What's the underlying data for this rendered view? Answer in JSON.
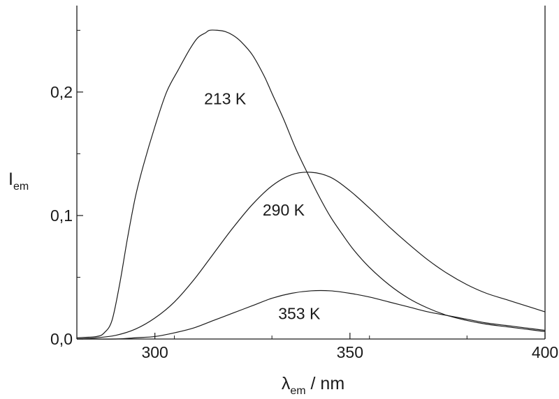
{
  "chart_data": {
    "type": "line",
    "xlabel": {
      "symbol": "λ",
      "sub": "em",
      "unit": " / nm"
    },
    "ylabel": {
      "symbol": "I",
      "sub": "em"
    },
    "xlim": [
      280,
      400
    ],
    "ylim": [
      0,
      0.27
    ],
    "x_ticks": [
      {
        "value": 300,
        "label": "300"
      },
      {
        "value": 350,
        "label": "350"
      },
      {
        "value": 400,
        "label": "400"
      }
    ],
    "y_ticks": [
      {
        "value": 0.0,
        "label": "0,0"
      },
      {
        "value": 0.1,
        "label": "0,1"
      },
      {
        "value": 0.2,
        "label": "0,2"
      }
    ],
    "grid": false,
    "colors": {
      "line": "#1a1a1a",
      "axis": "#1a1a1a",
      "background": "#ffffff"
    },
    "series": [
      {
        "name": "213 K",
        "x": [
          280,
          285,
          287,
          289,
          291,
          293,
          295,
          297,
          300,
          303,
          306,
          309,
          311,
          313,
          314,
          316,
          318,
          320,
          322,
          325,
          328,
          330,
          333,
          336,
          339,
          342,
          345,
          348,
          351,
          355,
          360,
          365,
          370,
          375,
          380,
          385,
          390,
          395,
          400
        ],
        "values": [
          0.001,
          0.002,
          0.005,
          0.015,
          0.045,
          0.082,
          0.115,
          0.14,
          0.172,
          0.2,
          0.218,
          0.235,
          0.244,
          0.248,
          0.25,
          0.25,
          0.249,
          0.246,
          0.241,
          0.23,
          0.213,
          0.199,
          0.178,
          0.155,
          0.135,
          0.116,
          0.099,
          0.085,
          0.072,
          0.058,
          0.044,
          0.033,
          0.025,
          0.019,
          0.015,
          0.012,
          0.01,
          0.008,
          0.006
        ]
      },
      {
        "name": "290 K",
        "x": [
          280,
          285,
          290,
          295,
          300,
          305,
          310,
          315,
          320,
          325,
          330,
          335,
          340,
          345,
          350,
          355,
          360,
          365,
          370,
          375,
          380,
          385,
          390,
          395,
          400
        ],
        "values": [
          0.0,
          0.001,
          0.003,
          0.008,
          0.017,
          0.03,
          0.048,
          0.069,
          0.09,
          0.109,
          0.124,
          0.133,
          0.135,
          0.131,
          0.12,
          0.106,
          0.091,
          0.077,
          0.064,
          0.053,
          0.044,
          0.037,
          0.032,
          0.027,
          0.022
        ]
      },
      {
        "name": "353 K",
        "x": [
          280,
          290,
          295,
          300,
          305,
          310,
          315,
          320,
          325,
          330,
          335,
          340,
          345,
          350,
          355,
          360,
          365,
          370,
          375,
          380,
          385,
          390,
          395,
          400
        ],
        "values": [
          0.0,
          0.0,
          0.001,
          0.002,
          0.005,
          0.009,
          0.015,
          0.021,
          0.027,
          0.033,
          0.037,
          0.039,
          0.039,
          0.037,
          0.034,
          0.03,
          0.026,
          0.022,
          0.019,
          0.016,
          0.013,
          0.011,
          0.009,
          0.007
        ]
      }
    ],
    "annotations": [
      {
        "text": "213 K",
        "x": 318,
        "y": 0.19
      },
      {
        "text": "290 K",
        "x": 333,
        "y": 0.1
      },
      {
        "text": "353 K",
        "x": 337,
        "y": 0.016
      }
    ]
  }
}
